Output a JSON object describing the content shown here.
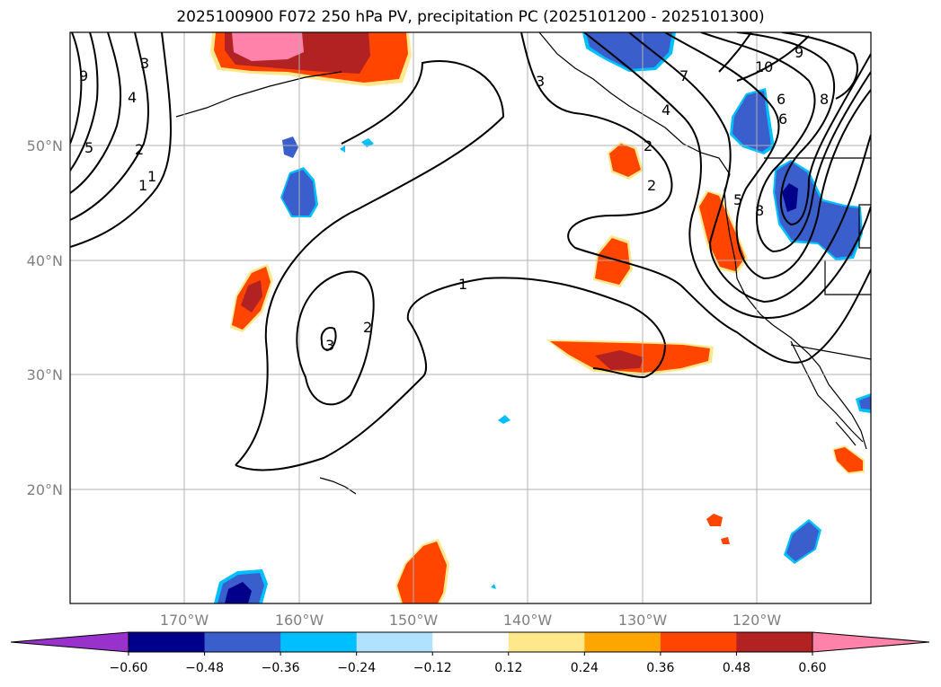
{
  "title": "2025100900 F072 250 hPa PV, precipitation PC (2025101200 - 2025101300)",
  "axes": {
    "lat_labels": [
      "50°N",
      "40°N",
      "30°N",
      "20°N"
    ],
    "lon_labels": [
      "170°W",
      "160°W",
      "150°W",
      "140°W",
      "130°W",
      "120°W"
    ]
  },
  "colorbar": {
    "ticks": [
      "−0.60",
      "−0.48",
      "−0.36",
      "−0.24",
      "−0.12",
      "0.12",
      "0.24",
      "0.36",
      "0.48",
      "0.60"
    ],
    "colors": [
      "#9932cc",
      "#00008b",
      "#3a5fcd",
      "#00bfff",
      "#b0e2ff",
      "#ffffff",
      "#ffe78b",
      "#ffa500",
      "#ff4500",
      "#b22222",
      "#ff82ab",
      "#ff82ab"
    ]
  },
  "contour_labels": [
    "1",
    "2",
    "3",
    "3",
    "2",
    "1",
    "2",
    "4",
    "5",
    "6",
    "7",
    "8",
    "9",
    "10",
    "9",
    "8",
    "6",
    "3",
    "4",
    "2",
    "1",
    "5"
  ]
}
